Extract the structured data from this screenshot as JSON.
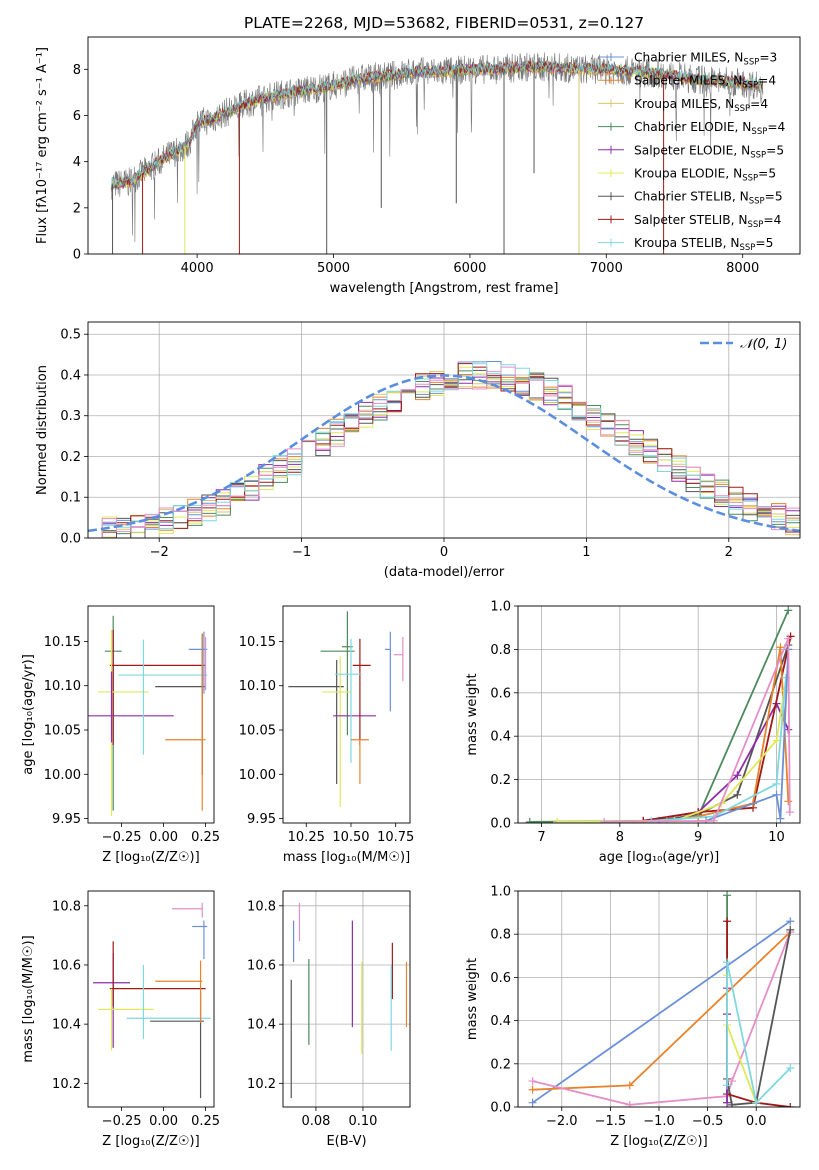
{
  "colors": [
    "#6a8fd8",
    "#e8832a",
    "#d6c86a",
    "#4e8a5c",
    "#8e2ea8",
    "#e0e85a",
    "#555555",
    "#a01818",
    "#7fd8e0",
    "#e48fc8"
  ],
  "chart_data": [
    {
      "id": "spectrum",
      "type": "line",
      "title": "PLATE=2268, MJD=53682, FIBERID=0531, z=0.127",
      "xlabel": "wavelength [Angstrom, rest frame]",
      "ylabel": "Flux [fλ10⁻¹⁷ erg cm⁻² s⁻¹ A⁻¹]",
      "xlim": [
        3200,
        8420
      ],
      "ylim": [
        0,
        9.4
      ],
      "xticks": [
        "4000",
        "5000",
        "6000",
        "7000",
        "8000"
      ],
      "yticks": [
        "0",
        "2",
        "4",
        "6",
        "8"
      ],
      "legend_position": "top-right",
      "legend": [
        {
          "label": "Chabrier MILES, N",
          "sub": "SSP",
          "suffix": "=3",
          "color": "#6a8fd8"
        },
        {
          "label": "Salpeter MILES, N",
          "sub": "SSP",
          "suffix": "=4",
          "color": "#e8832a"
        },
        {
          "label": "Kroupa MILES, N",
          "sub": "SSP",
          "suffix": "=4",
          "color": "#d6c86a"
        },
        {
          "label": "Chabrier ELODIE, N",
          "sub": "SSP",
          "suffix": "=4",
          "color": "#4e8a5c"
        },
        {
          "label": "Salpeter ELODIE, N",
          "sub": "SSP",
          "suffix": "=5",
          "color": "#8e2ea8"
        },
        {
          "label": "Kroupa ELODIE, N",
          "sub": "SSP",
          "suffix": "=5",
          "color": "#e0e85a"
        },
        {
          "label": "Chabrier STELIB, N",
          "sub": "SSP",
          "suffix": "=5",
          "color": "#555555"
        },
        {
          "label": "Salpeter STELIB, N",
          "sub": "SSP",
          "suffix": "=4",
          "color": "#a01818"
        },
        {
          "label": "Kroupa STELIB, N",
          "sub": "SSP",
          "suffix": "=5",
          "color": "#7fd8e0"
        }
      ],
      "continuum": {
        "x": [
          3370,
          3500,
          3600,
          3700,
          3800,
          3900,
          3950,
          4000,
          4100,
          4200,
          4400,
          4600,
          4800,
          5000,
          5200,
          5400,
          5600,
          5800,
          6000,
          6200,
          6400,
          6600,
          6800,
          7000,
          7200,
          7400,
          7600,
          7800,
          8000,
          8150
        ],
        "y": [
          3.0,
          3.1,
          3.5,
          3.9,
          4.3,
          4.6,
          4.9,
          5.7,
          5.8,
          6.1,
          6.6,
          6.9,
          7.1,
          7.3,
          7.6,
          7.7,
          7.9,
          7.9,
          8.0,
          8.0,
          8.1,
          8.1,
          8.0,
          8.0,
          7.9,
          7.8,
          7.6,
          7.5,
          7.4,
          7.3
        ]
      },
      "drops": [
        {
          "x": 3380,
          "y": 0,
          "color": "#555555"
        },
        {
          "x": 3600,
          "y": 0,
          "color": "#a01818"
        },
        {
          "x": 3910,
          "y": 0,
          "color": "#e0e85a"
        },
        {
          "x": 4310,
          "y": 0,
          "color": "#a01818"
        },
        {
          "x": 4950,
          "y": 0,
          "color": "#555555"
        },
        {
          "x": 5350,
          "y": 2.0,
          "color": "#555555"
        },
        {
          "x": 5900,
          "y": 2.2,
          "color": "#555555"
        },
        {
          "x": 6250,
          "y": 0,
          "color": "#555555"
        },
        {
          "x": 6800,
          "y": 0,
          "color": "#d6c86a"
        },
        {
          "x": 7420,
          "y": 0,
          "color": "#a01818"
        },
        {
          "x": 6470,
          "y": 3.5,
          "color": "#555555"
        }
      ]
    },
    {
      "id": "residuals",
      "type": "histogram",
      "xlabel": "(data-model)/error",
      "ylabel": "Normed distribution",
      "xlim": [
        -2.5,
        2.5
      ],
      "ylim": [
        0,
        0.53
      ],
      "xticks": [
        "−2",
        "−1",
        "0",
        "1",
        "2"
      ],
      "yticks": [
        "0.0",
        "0.1",
        "0.2",
        "0.3",
        "0.4",
        "0.5"
      ],
      "grid": true,
      "legend_position": "top-right",
      "legend_label": "𝒩(0, 1)",
      "bin_width": 0.1,
      "bin_start": -2.5,
      "reference_values": [
        0.018,
        0.02,
        0.022,
        0.026,
        0.03,
        0.04,
        0.05,
        0.062,
        0.075,
        0.09,
        0.108,
        0.126,
        0.146,
        0.168,
        0.19,
        0.212,
        0.235,
        0.258,
        0.28,
        0.3,
        0.322,
        0.34,
        0.357,
        0.372,
        0.384,
        0.393,
        0.398,
        0.4,
        0.398,
        0.393,
        0.384,
        0.372,
        0.357,
        0.34,
        0.322,
        0.3,
        0.28,
        0.258,
        0.235,
        0.212,
        0.19,
        0.168,
        0.146,
        0.126,
        0.108,
        0.09,
        0.075,
        0.062,
        0.05,
        0.04,
        0.03
      ]
    },
    {
      "id": "age-vs-Z",
      "type": "errorbar",
      "xlabel": "Z [log₁₀(Z/Z☉)]",
      "ylabel": "age  [log₁₀(age/yr)]",
      "xlim": [
        -0.45,
        0.3
      ],
      "ylim": [
        9.945,
        10.19
      ],
      "xticks": [
        "−0.25",
        "0.00",
        "0.25"
      ],
      "yticks": [
        "9.95",
        "10.00",
        "10.05",
        "10.10",
        "10.15"
      ]
    },
    {
      "id": "age-vs-mass",
      "type": "errorbar",
      "xlabel": "mass [log₁₀(M/M☉)]",
      "ylabel": "",
      "xlim": [
        10.12,
        10.83
      ],
      "ylim": [
        9.945,
        10.19
      ],
      "xticks": [
        "10.25",
        "10.50",
        "10.75"
      ],
      "yticks": [
        "9.95",
        "10.00",
        "10.05",
        "10.10",
        "10.15"
      ]
    },
    {
      "id": "weight-vs-age",
      "type": "line",
      "xlabel": "age  [log₁₀(age/yr)]",
      "ylabel": "mass weight",
      "xlim": [
        6.7,
        10.3
      ],
      "ylim": [
        0,
        1
      ],
      "xticks": [
        "7",
        "8",
        "9",
        "10"
      ],
      "yticks": [
        "0.0",
        "0.2",
        "0.4",
        "0.6",
        "0.8",
        "1.0"
      ],
      "grid": true
    },
    {
      "id": "mass-vs-Z",
      "type": "errorbar",
      "xlabel": "Z [log₁₀(Z/Z☉)]",
      "ylabel": "mass [log₁₀(M/M☉)]",
      "xlim": [
        -0.45,
        0.3
      ],
      "ylim": [
        10.12,
        10.85
      ],
      "xticks": [
        "−0.25",
        "0.00",
        "0.25"
      ],
      "yticks": [
        "10.2",
        "10.4",
        "10.6",
        "10.8"
      ]
    },
    {
      "id": "mass-vs-ebv",
      "type": "errorbar",
      "xlabel": "E(B-V)",
      "ylabel": "",
      "xlim": [
        0.066,
        0.12
      ],
      "ylim": [
        10.12,
        10.85
      ],
      "xticks": [
        "0.08",
        "0.10"
      ],
      "yticks": [
        "10.2",
        "10.4",
        "10.6",
        "10.8"
      ],
      "grid": true
    },
    {
      "id": "weight-vs-Z",
      "type": "line",
      "xlabel": "Z [log₁₀(Z/Z☉)]",
      "ylabel": "mass weight",
      "xlim": [
        -2.45,
        0.45
      ],
      "ylim": [
        0,
        1
      ],
      "xticks": [
        "−2.0",
        "−1.5",
        "−1.0",
        "−0.5",
        "0.0"
      ],
      "yticks": [
        "0.0",
        "0.2",
        "0.4",
        "0.6",
        "0.8",
        "1.0"
      ],
      "grid": true
    }
  ]
}
